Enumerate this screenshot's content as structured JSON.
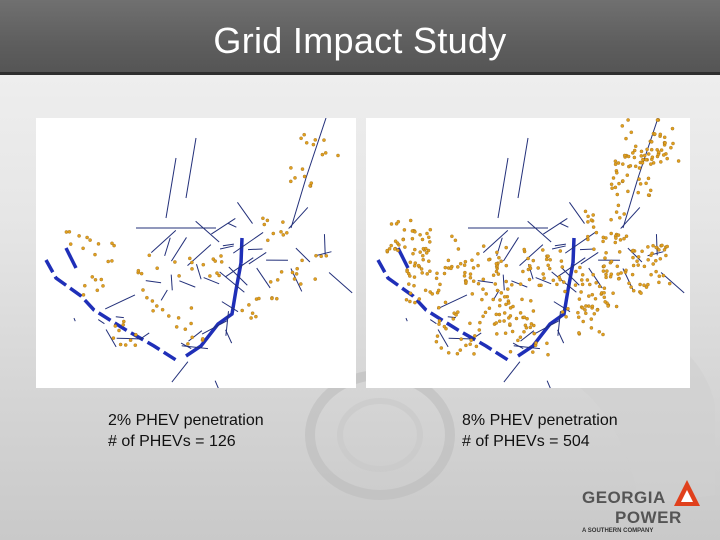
{
  "slide": {
    "title": "Grid Impact Study"
  },
  "panels": [
    {
      "line1": "2% PHEV penetration",
      "line2": "# of PHEVs = 126",
      "penetration_percent": 2,
      "phev_count": 126
    },
    {
      "line1": "8% PHEV penetration",
      "line2": "# of PHEVs = 504",
      "penetration_percent": 8,
      "phev_count": 504
    }
  ],
  "logo": {
    "word1": "GEORGIA",
    "word2": "POWER",
    "tagline": "A SOUTHERN COMPANY",
    "mark_color": "#e0401c"
  },
  "colors": {
    "feeder": "#1f2fb8",
    "phev_marker": "#e0a020",
    "title_bar": "#5e5e5e"
  }
}
